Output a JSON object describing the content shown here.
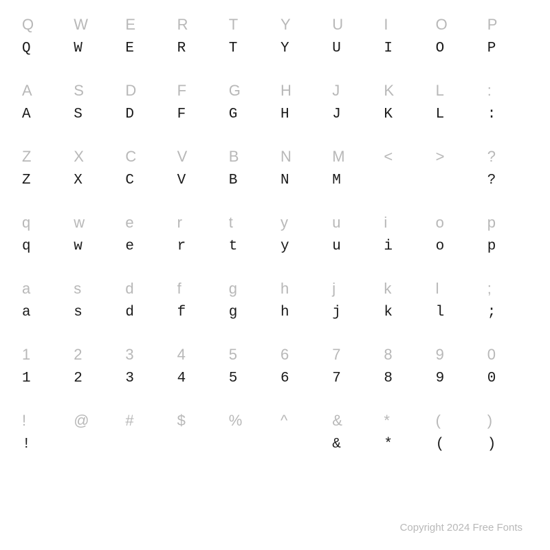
{
  "chart": {
    "type": "font-specimen-grid",
    "columns": 10,
    "background_color": "#ffffff",
    "label_color": "#b8b8b8",
    "glyph_color": "#1a1a1a",
    "label_fontsize": 22,
    "glyph_fontsize": 21,
    "rows": [
      {
        "labels": [
          "Q",
          "W",
          "E",
          "R",
          "T",
          "Y",
          "U",
          "I",
          "O",
          "P"
        ],
        "glyphs": [
          "Q",
          "W",
          "E",
          "R",
          "T",
          "Y",
          "U",
          "I",
          "O",
          "P"
        ]
      },
      {
        "labels": [
          "A",
          "S",
          "D",
          "F",
          "G",
          "H",
          "J",
          "K",
          "L",
          ":"
        ],
        "glyphs": [
          "A",
          "S",
          "D",
          "F",
          "G",
          "H",
          "J",
          "K",
          "L",
          ":"
        ]
      },
      {
        "labels": [
          "Z",
          "X",
          "C",
          "V",
          "B",
          "N",
          "M",
          "<",
          ">",
          "?"
        ],
        "glyphs": [
          "Z",
          "X",
          "C",
          "V",
          "B",
          "N",
          "M",
          "",
          "",
          "?"
        ]
      },
      {
        "labels": [
          "q",
          "w",
          "e",
          "r",
          "t",
          "y",
          "u",
          "i",
          "o",
          "p"
        ],
        "glyphs": [
          "q",
          "w",
          "e",
          "r",
          "t",
          "y",
          "u",
          "i",
          "o",
          "p"
        ]
      },
      {
        "labels": [
          "a",
          "s",
          "d",
          "f",
          "g",
          "h",
          "j",
          "k",
          "l",
          ";"
        ],
        "glyphs": [
          "a",
          "s",
          "d",
          "f",
          "g",
          "h",
          "j",
          "k",
          "l",
          ";"
        ]
      },
      {
        "labels": [
          "1",
          "2",
          "3",
          "4",
          "5",
          "6",
          "7",
          "8",
          "9",
          "0"
        ],
        "glyphs": [
          "1",
          "2",
          "3",
          "4",
          "5",
          "6",
          "7",
          "8",
          "9",
          "0"
        ]
      },
      {
        "labels": [
          "!",
          "@",
          "#",
          "$",
          "%",
          "^",
          "&",
          "*",
          "(",
          ")"
        ],
        "glyphs": [
          "!",
          "",
          "",
          "",
          "",
          "",
          "&",
          "*",
          "(",
          ")"
        ]
      }
    ]
  },
  "copyright": "Copyright 2024 Free Fonts"
}
